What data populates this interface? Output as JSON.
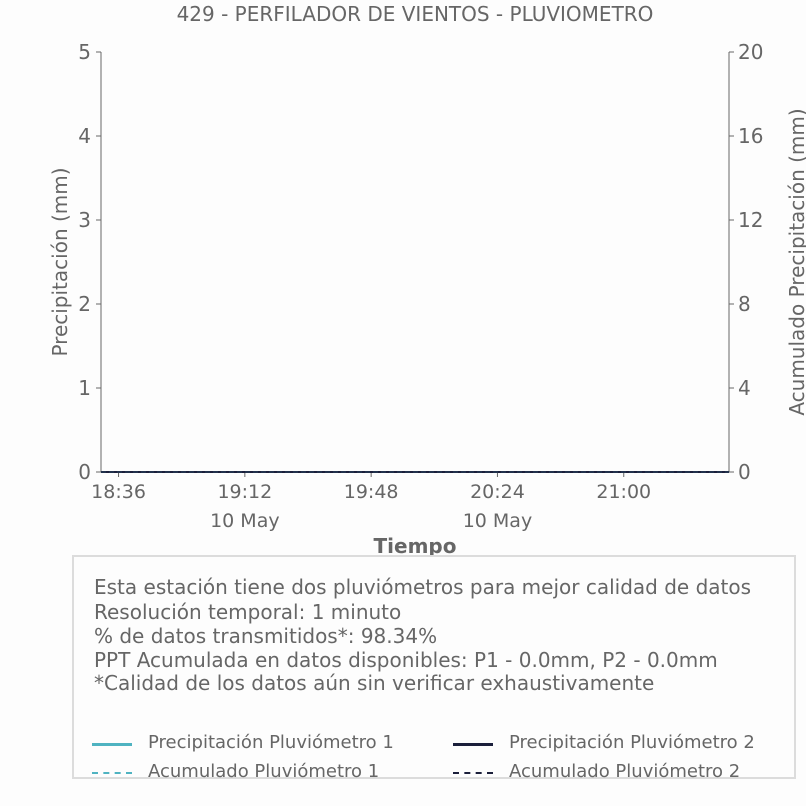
{
  "chart_data": {
    "type": "line",
    "title": "429 - PERFILADOR DE VIENTOS - PLUVIOMETRO",
    "xlabel": "Tiempo",
    "ylabel": "Precipitación (mm)",
    "y2label": "Acumulado Precipitación (mm)",
    "ylim": [
      0,
      5
    ],
    "y2lim": [
      0,
      20
    ],
    "yticks": [
      "0",
      "1",
      "2",
      "3",
      "4",
      "5"
    ],
    "y2ticks": [
      "0",
      "4",
      "8",
      "12",
      "16",
      "20"
    ],
    "xlim": [
      "18:31",
      "21:30"
    ],
    "xticks": [
      {
        "time": "18:36",
        "date": ""
      },
      {
        "time": "19:12",
        "date": "10 May"
      },
      {
        "time": "19:48",
        "date": ""
      },
      {
        "time": "20:24",
        "date": "10 May"
      },
      {
        "time": "21:00",
        "date": ""
      }
    ],
    "grid": false,
    "series": [
      {
        "name": "Precipitación Pluviómetro 1",
        "color": "#4fb3c1",
        "style": "solid",
        "axis": "left",
        "x": [
          "18:31",
          "21:30"
        ],
        "values": [
          0,
          0
        ]
      },
      {
        "name": "Precipitación Pluviómetro 2",
        "color": "#1b1f3b",
        "style": "solid",
        "axis": "left",
        "x": [
          "18:31",
          "21:30"
        ],
        "values": [
          0,
          0
        ]
      },
      {
        "name": "Acumulado Pluviómetro 1",
        "color": "#4fb3c1",
        "style": "dashed",
        "axis": "right",
        "x": [
          "18:31",
          "21:30"
        ],
        "values": [
          0,
          0
        ]
      },
      {
        "name": "Acumulado Pluviómetro 2",
        "color": "#1b1f3b",
        "style": "dashed",
        "axis": "right",
        "x": [
          "18:31",
          "21:30"
        ],
        "values": [
          0,
          0
        ]
      }
    ]
  },
  "info": {
    "lines": [
      "Esta estación tiene dos pluviómetros para mejor calidad de datos",
      "Resolución temporal: 1 minuto",
      "% de datos transmitidos*: 98.34%",
      "PPT Acumulada en datos disponibles: P1 - 0.0mm, P2 - 0.0mm",
      "*Calidad de los datos aún sin verificar exhaustivamente"
    ]
  }
}
